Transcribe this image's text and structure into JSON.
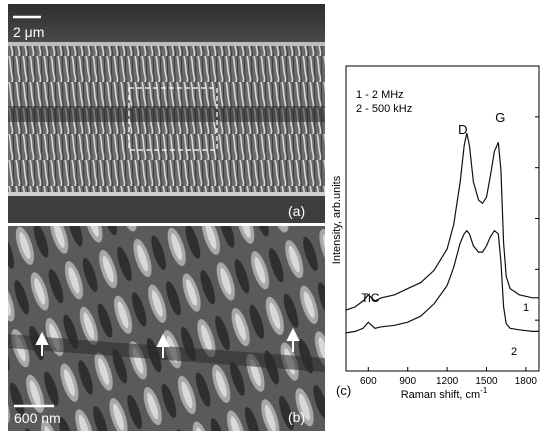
{
  "figure": {
    "panel_a": {
      "label": "(a)",
      "scale_bar": "2 μm"
    },
    "panel_b": {
      "label": "(b)",
      "scale_bar": "600 nm"
    },
    "panel_c": {
      "label": "(c)"
    }
  },
  "chart_data": {
    "type": "line",
    "xlabel": "Raman shift, cm",
    "xlabel_sup": "-1",
    "ylabel": "Intensity, arb.units",
    "xlim": [
      430,
      1900
    ],
    "ylim": [
      0,
      1
    ],
    "x_ticks": [
      600,
      900,
      1200,
      1500,
      1800
    ],
    "legend": [
      "1 - 2 MHz",
      "2 - 500 kHz"
    ],
    "annotations": [
      {
        "text": "D",
        "x": 1350
      },
      {
        "text": "G",
        "x": 1590
      },
      {
        "text": "TiC",
        "x": 600
      }
    ],
    "series": [
      {
        "name": "1",
        "x": [
          430,
          500,
          560,
          600,
          650,
          700,
          800,
          900,
          1000,
          1100,
          1200,
          1250,
          1300,
          1330,
          1350,
          1370,
          1400,
          1440,
          1470,
          1500,
          1530,
          1560,
          1590,
          1610,
          1630,
          1650,
          1680,
          1750,
          1850,
          1900
        ],
        "y": [
          0.2,
          0.21,
          0.23,
          0.25,
          0.23,
          0.24,
          0.25,
          0.27,
          0.29,
          0.33,
          0.4,
          0.48,
          0.62,
          0.74,
          0.78,
          0.74,
          0.62,
          0.56,
          0.55,
          0.57,
          0.64,
          0.72,
          0.75,
          0.66,
          0.42,
          0.31,
          0.27,
          0.25,
          0.24,
          0.24
        ]
      },
      {
        "name": "2",
        "x": [
          430,
          500,
          560,
          600,
          650,
          700,
          800,
          900,
          1000,
          1100,
          1200,
          1250,
          1300,
          1330,
          1350,
          1370,
          1400,
          1440,
          1470,
          1500,
          1530,
          1560,
          1590,
          1610,
          1630,
          1650,
          1680,
          1750,
          1850,
          1900
        ],
        "y": [
          0.125,
          0.13,
          0.14,
          0.16,
          0.14,
          0.145,
          0.15,
          0.16,
          0.18,
          0.22,
          0.28,
          0.34,
          0.42,
          0.45,
          0.46,
          0.45,
          0.41,
          0.39,
          0.39,
          0.41,
          0.44,
          0.46,
          0.45,
          0.36,
          0.21,
          0.155,
          0.14,
          0.135,
          0.13,
          0.13
        ]
      }
    ],
    "series_labels": [
      {
        "text": "1",
        "series": 0
      },
      {
        "text": "2",
        "series": 1
      }
    ]
  }
}
